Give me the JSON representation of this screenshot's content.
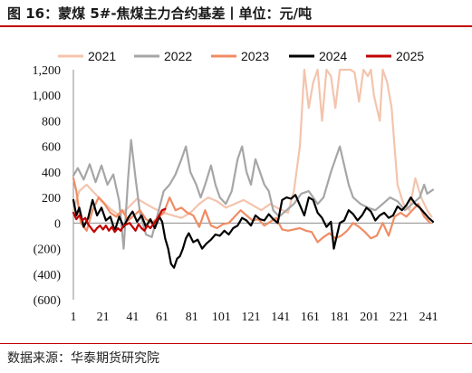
{
  "header": {
    "title": "图 16：蒙煤 5#-焦煤主力合约基差丨单位：元/吨"
  },
  "footer": {
    "source": "数据来源：华泰期货研究院"
  },
  "chart_data": {
    "type": "line",
    "title": "蒙煤 5#-焦煤主力合约基差",
    "unit": "元/吨",
    "xlabel": "",
    "ylabel": "",
    "xlim": [
      1,
      244
    ],
    "ylim": [
      -600,
      1200
    ],
    "x_ticks": [
      1,
      21,
      41,
      61,
      81,
      101,
      121,
      141,
      161,
      181,
      201,
      221,
      241
    ],
    "y_ticks": [
      -600,
      -400,
      -200,
      0,
      200,
      400,
      600,
      800,
      1000,
      1200
    ],
    "y_tick_labels": [
      "(600)",
      "(400)",
      "(200)",
      "0",
      "200",
      "400",
      "600",
      "800",
      "1,000",
      "1,200"
    ],
    "grid": false,
    "legend_position": "top",
    "series": [
      {
        "name": "2021",
        "color": "#f4c4ad",
        "stroke_width": 2.2,
        "points": [
          [
            1,
            100
          ],
          [
            5,
            250
          ],
          [
            10,
            300
          ],
          [
            14,
            250
          ],
          [
            20,
            180
          ],
          [
            26,
            110
          ],
          [
            32,
            60
          ],
          [
            38,
            120
          ],
          [
            44,
            190
          ],
          [
            50,
            150
          ],
          [
            56,
            110
          ],
          [
            62,
            80
          ],
          [
            68,
            60
          ],
          [
            74,
            40
          ],
          [
            80,
            80
          ],
          [
            86,
            150
          ],
          [
            92,
            200
          ],
          [
            98,
            170
          ],
          [
            104,
            120
          ],
          [
            110,
            150
          ],
          [
            116,
            180
          ],
          [
            122,
            140
          ],
          [
            128,
            100
          ],
          [
            134,
            150
          ],
          [
            140,
            110
          ],
          [
            146,
            80
          ],
          [
            150,
            250
          ],
          [
            154,
            600
          ],
          [
            157,
            1200
          ],
          [
            160,
            900
          ],
          [
            163,
            1100
          ],
          [
            166,
            1200
          ],
          [
            169,
            800
          ],
          [
            172,
            1200
          ],
          [
            175,
            1150
          ],
          [
            178,
            900
          ],
          [
            181,
            1200
          ],
          [
            185,
            1200
          ],
          [
            188,
            1200
          ],
          [
            191,
            1180
          ],
          [
            194,
            950
          ],
          [
            197,
            1200
          ],
          [
            200,
            1150
          ],
          [
            202,
            1200
          ],
          [
            204,
            1000
          ],
          [
            208,
            800
          ],
          [
            210,
            1200
          ],
          [
            213,
            1100
          ],
          [
            216,
            900
          ],
          [
            218,
            600
          ],
          [
            220,
            300
          ],
          [
            224,
            150
          ],
          [
            228,
            100
          ],
          [
            232,
            350
          ],
          [
            236,
            200
          ],
          [
            240,
            100
          ],
          [
            243,
            50
          ]
        ]
      },
      {
        "name": "2022",
        "color": "#a6a6a6",
        "stroke_width": 2.2,
        "points": [
          [
            1,
            370
          ],
          [
            4,
            430
          ],
          [
            8,
            340
          ],
          [
            12,
            460
          ],
          [
            16,
            320
          ],
          [
            20,
            450
          ],
          [
            24,
            300
          ],
          [
            28,
            380
          ],
          [
            32,
            170
          ],
          [
            35,
            -200
          ],
          [
            38,
            350
          ],
          [
            40,
            650
          ],
          [
            43,
            350
          ],
          [
            46,
            80
          ],
          [
            50,
            -90
          ],
          [
            54,
            -110
          ],
          [
            58,
            70
          ],
          [
            62,
            250
          ],
          [
            66,
            300
          ],
          [
            70,
            380
          ],
          [
            74,
            500
          ],
          [
            77,
            600
          ],
          [
            80,
            400
          ],
          [
            84,
            300
          ],
          [
            87,
            200
          ],
          [
            90,
            300
          ],
          [
            94,
            450
          ],
          [
            97,
            300
          ],
          [
            100,
            200
          ],
          [
            104,
            150
          ],
          [
            108,
            250
          ],
          [
            112,
            500
          ],
          [
            115,
            600
          ],
          [
            118,
            400
          ],
          [
            121,
            300
          ],
          [
            124,
            500
          ],
          [
            127,
            400
          ],
          [
            130,
            300
          ],
          [
            133,
            250
          ],
          [
            136,
            100
          ],
          [
            140,
            50
          ],
          [
            145,
            100
          ],
          [
            150,
            150
          ],
          [
            155,
            230
          ],
          [
            160,
            250
          ],
          [
            166,
            150
          ],
          [
            170,
            200
          ],
          [
            175,
            400
          ],
          [
            178,
            500
          ],
          [
            181,
            600
          ],
          [
            184,
            450
          ],
          [
            187,
            300
          ],
          [
            190,
            200
          ],
          [
            195,
            150
          ],
          [
            200,
            120
          ],
          [
            205,
            100
          ],
          [
            210,
            150
          ],
          [
            215,
            200
          ],
          [
            220,
            170
          ],
          [
            225,
            100
          ],
          [
            230,
            150
          ],
          [
            235,
            200
          ],
          [
            238,
            300
          ],
          [
            240,
            230
          ],
          [
            244,
            260
          ]
        ]
      },
      {
        "name": "2023",
        "color": "#f08c64",
        "stroke_width": 2.2,
        "points": [
          [
            1,
            350
          ],
          [
            3,
            250
          ],
          [
            6,
            0
          ],
          [
            10,
            -60
          ],
          [
            14,
            100
          ],
          [
            18,
            200
          ],
          [
            22,
            150
          ],
          [
            26,
            80
          ],
          [
            30,
            50
          ],
          [
            34,
            100
          ],
          [
            38,
            20
          ],
          [
            42,
            60
          ],
          [
            46,
            100
          ],
          [
            50,
            30
          ],
          [
            54,
            0
          ],
          [
            58,
            40
          ],
          [
            62,
            80
          ],
          [
            66,
            200
          ],
          [
            70,
            100
          ],
          [
            74,
            120
          ],
          [
            78,
            80
          ],
          [
            82,
            60
          ],
          [
            86,
            -30
          ],
          [
            90,
            100
          ],
          [
            94,
            -20
          ],
          [
            98,
            -40
          ],
          [
            102,
            -10
          ],
          [
            106,
            0
          ],
          [
            110,
            50
          ],
          [
            114,
            100
          ],
          [
            118,
            60
          ],
          [
            122,
            20
          ],
          [
            126,
            30
          ],
          [
            130,
            -20
          ],
          [
            134,
            10
          ],
          [
            138,
            40
          ],
          [
            142,
            -50
          ],
          [
            146,
            -60
          ],
          [
            150,
            -50
          ],
          [
            154,
            -40
          ],
          [
            158,
            -60
          ],
          [
            162,
            -70
          ],
          [
            166,
            -150
          ],
          [
            170,
            -110
          ],
          [
            174,
            -80
          ],
          [
            178,
            -120
          ],
          [
            182,
            -100
          ],
          [
            186,
            -60
          ],
          [
            190,
            0
          ],
          [
            194,
            -30
          ],
          [
            198,
            -70
          ],
          [
            202,
            -120
          ],
          [
            206,
            -100
          ],
          [
            210,
            0
          ],
          [
            214,
            -100
          ],
          [
            218,
            50
          ],
          [
            222,
            80
          ],
          [
            226,
            50
          ],
          [
            230,
            100
          ],
          [
            234,
            150
          ],
          [
            238,
            50
          ],
          [
            242,
            0
          ]
        ]
      },
      {
        "name": "2024",
        "color": "#000000",
        "stroke_width": 2.2,
        "points": [
          [
            1,
            180
          ],
          [
            3,
            60
          ],
          [
            5,
            120
          ],
          [
            8,
            -30
          ],
          [
            11,
            40
          ],
          [
            14,
            180
          ],
          [
            17,
            60
          ],
          [
            20,
            120
          ],
          [
            23,
            20
          ],
          [
            26,
            50
          ],
          [
            29,
            -60
          ],
          [
            32,
            50
          ],
          [
            35,
            -30
          ],
          [
            38,
            40
          ],
          [
            41,
            90
          ],
          [
            44,
            10
          ],
          [
            47,
            60
          ],
          [
            50,
            -30
          ],
          [
            53,
            30
          ],
          [
            56,
            -40
          ],
          [
            59,
            50
          ],
          [
            61,
            10
          ],
          [
            63,
            -120
          ],
          [
            65,
            -200
          ],
          [
            67,
            -320
          ],
          [
            69,
            -350
          ],
          [
            71,
            -280
          ],
          [
            73,
            -260
          ],
          [
            75,
            -200
          ],
          [
            77,
            -120
          ],
          [
            79,
            -80
          ],
          [
            82,
            -150
          ],
          [
            85,
            -130
          ],
          [
            88,
            -200
          ],
          [
            91,
            -160
          ],
          [
            94,
            -130
          ],
          [
            97,
            -90
          ],
          [
            100,
            -100
          ],
          [
            103,
            -60
          ],
          [
            106,
            -90
          ],
          [
            109,
            -40
          ],
          [
            112,
            -20
          ],
          [
            115,
            40
          ],
          [
            118,
            20
          ],
          [
            121,
            -20
          ],
          [
            124,
            60
          ],
          [
            127,
            30
          ],
          [
            130,
            20
          ],
          [
            133,
            70
          ],
          [
            136,
            30
          ],
          [
            139,
            0
          ],
          [
            142,
            180
          ],
          [
            145,
            200
          ],
          [
            148,
            190
          ],
          [
            151,
            220
          ],
          [
            154,
            140
          ],
          [
            157,
            60
          ],
          [
            160,
            200
          ],
          [
            163,
            180
          ],
          [
            166,
            80
          ],
          [
            169,
            40
          ],
          [
            172,
            -30
          ],
          [
            175,
            10
          ],
          [
            177,
            -200
          ],
          [
            179,
            -100
          ],
          [
            181,
            0
          ],
          [
            184,
            20
          ],
          [
            187,
            100
          ],
          [
            190,
            70
          ],
          [
            193,
            20
          ],
          [
            196,
            60
          ],
          [
            199,
            120
          ],
          [
            202,
            90
          ],
          [
            205,
            20
          ],
          [
            208,
            60
          ],
          [
            211,
            80
          ],
          [
            214,
            40
          ],
          [
            217,
            60
          ],
          [
            220,
            130
          ],
          [
            223,
            100
          ],
          [
            226,
            140
          ],
          [
            229,
            200
          ],
          [
            232,
            150
          ],
          [
            235,
            120
          ],
          [
            238,
            80
          ],
          [
            241,
            40
          ],
          [
            244,
            10
          ]
        ]
      },
      {
        "name": "2025",
        "color": "#c00000",
        "stroke_width": 2.2,
        "points": [
          [
            1,
            80
          ],
          [
            3,
            30
          ],
          [
            5,
            60
          ],
          [
            7,
            20
          ],
          [
            9,
            40
          ],
          [
            11,
            -10
          ],
          [
            13,
            -40
          ],
          [
            15,
            -70
          ],
          [
            17,
            -40
          ],
          [
            19,
            -20
          ],
          [
            21,
            -50
          ],
          [
            23,
            -20
          ],
          [
            25,
            -60
          ],
          [
            27,
            -30
          ],
          [
            29,
            -70
          ],
          [
            31,
            -40
          ],
          [
            33,
            -60
          ],
          [
            35,
            -20
          ],
          [
            37,
            -10
          ],
          [
            39,
            0
          ],
          [
            41,
            -30
          ],
          [
            43,
            -60
          ],
          [
            45,
            -10
          ],
          [
            47,
            -40
          ],
          [
            49,
            -60
          ],
          [
            51,
            -20
          ],
          [
            53,
            -40
          ],
          [
            55,
            -10
          ],
          [
            57,
            20
          ],
          [
            59,
            60
          ],
          [
            61,
            100
          ],
          [
            63,
            110
          ]
        ]
      }
    ]
  }
}
